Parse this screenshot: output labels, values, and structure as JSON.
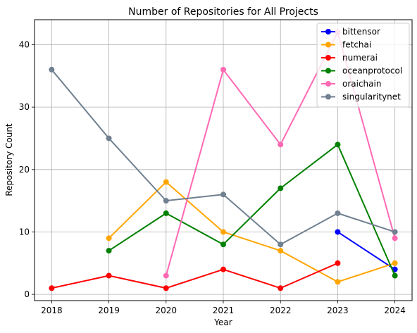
{
  "chart_data": {
    "type": "line",
    "title": "Number of Repositories for All Projects",
    "xlabel": "Year",
    "ylabel": "Repository Count",
    "x": [
      2018,
      2019,
      2020,
      2021,
      2022,
      2023,
      2024
    ],
    "xlim": [
      2017.7,
      2024.3
    ],
    "ylim": [
      -1,
      44
    ],
    "yticks": [
      0,
      10,
      20,
      30,
      40
    ],
    "grid": true,
    "legend_position": "top-right",
    "series": [
      {
        "name": "bittensor",
        "color": "#0000ff",
        "points": [
          [
            2023,
            10
          ],
          [
            2024,
            4
          ]
        ]
      },
      {
        "name": "fetchai",
        "color": "#ffa500",
        "points": [
          [
            2019,
            9
          ],
          [
            2020,
            18
          ],
          [
            2021,
            10
          ],
          [
            2022,
            7
          ],
          [
            2023,
            2
          ],
          [
            2024,
            5
          ]
        ]
      },
      {
        "name": "numerai",
        "color": "#ff0000",
        "points": [
          [
            2018,
            1
          ],
          [
            2019,
            3
          ],
          [
            2020,
            1
          ],
          [
            2021,
            4
          ],
          [
            2022,
            1
          ],
          [
            2023,
            5
          ]
        ]
      },
      {
        "name": "oceanprotocol",
        "color": "#008000",
        "points": [
          [
            2019,
            7
          ],
          [
            2020,
            13
          ],
          [
            2021,
            8
          ],
          [
            2022,
            17
          ],
          [
            2023,
            24
          ],
          [
            2024,
            3
          ]
        ]
      },
      {
        "name": "oraichain",
        "color": "#ff69b4",
        "points": [
          [
            2020,
            3
          ],
          [
            2021,
            36
          ],
          [
            2022,
            24
          ],
          [
            2023,
            42
          ],
          [
            2024,
            9
          ]
        ]
      },
      {
        "name": "singularitynet",
        "color": "#708090",
        "points": [
          [
            2018,
            36
          ],
          [
            2019,
            25
          ],
          [
            2020,
            15
          ],
          [
            2021,
            16
          ],
          [
            2022,
            8
          ],
          [
            2023,
            13
          ],
          [
            2024,
            10
          ]
        ]
      }
    ]
  }
}
